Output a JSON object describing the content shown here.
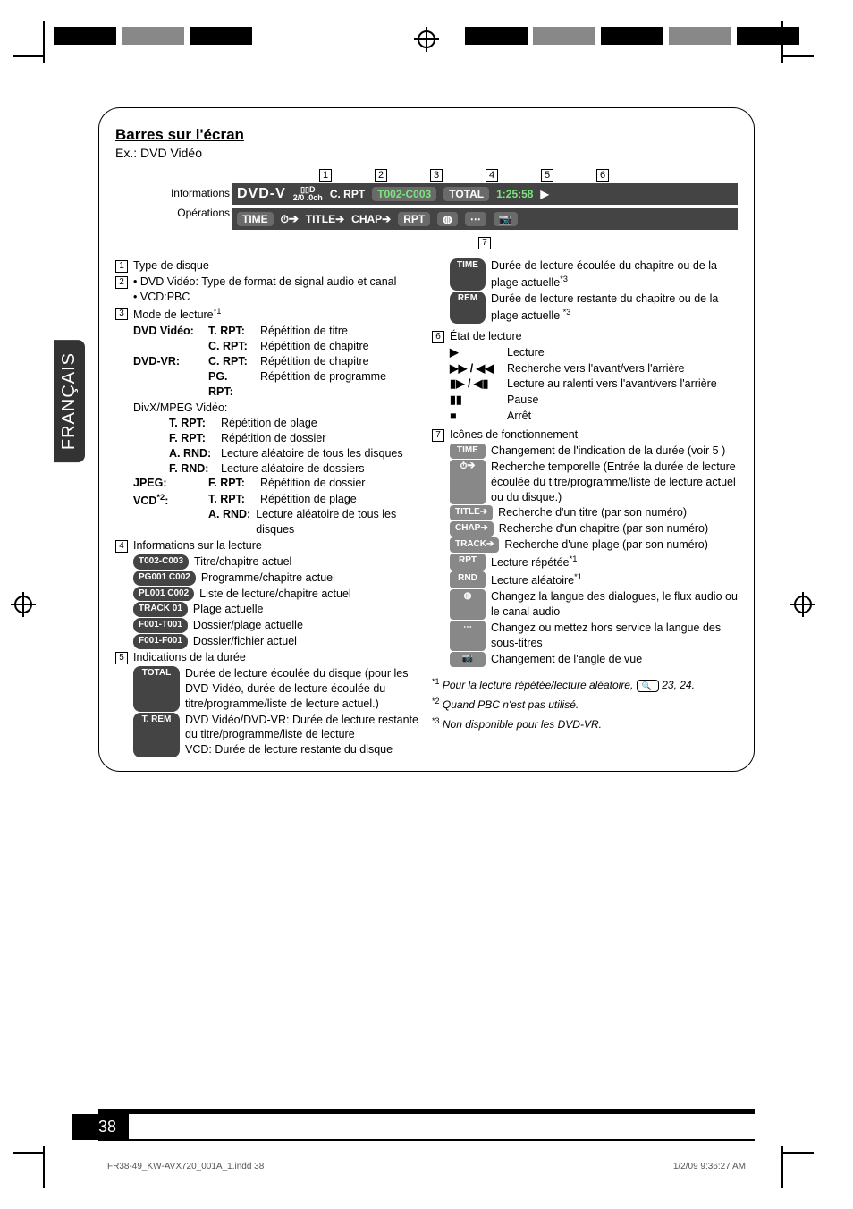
{
  "colors": {
    "bar_bg": "#444444",
    "pill_bg": "#6a6a6a",
    "green": "#7de37d"
  },
  "lang_tab": "FRANÇAIS",
  "heading": "Barres sur l'écran",
  "subheading": "Ex.: DVD Vidéo",
  "osd": {
    "left_label_top": "Informations",
    "left_label_bot": "Opérations",
    "callouts": [
      "1",
      "2",
      "3",
      "4",
      "5",
      "6",
      "7"
    ],
    "bar1": {
      "type": "DVD-V",
      "audio_line1": "▯▯D",
      "audio_line2": "2/0 .0ch",
      "rpt": "C. RPT",
      "tc": "T002-C003",
      "total_lbl": "TOTAL",
      "time": "1:25:58",
      "play": "▶"
    },
    "bar2": {
      "time": "TIME",
      "clock": "⏱➔",
      "title": "TITLE➔",
      "chap": "CHAP➔",
      "rpt": "RPT",
      "disc": "◍",
      "sub": "⋯",
      "angle": "📷"
    }
  },
  "left": {
    "n1": "Type de disque",
    "n2_a": "DVD Vidéo: Type de format de signal audio et canal",
    "n2_b": "VCD:PBC",
    "n3_head": "Mode de lecture",
    "n3_sup": "*1",
    "dvdvideo": "DVD Vidéo:",
    "dvdvr": "DVD-VR:",
    "divx": "DivX/MPEG Vidéo:",
    "jpeg": "JPEG:",
    "vcd": "VCD",
    "vcd_sup": "*2",
    "modes": {
      "trpt": {
        "k": "T. RPT:",
        "v": "Répétition de titre"
      },
      "crpt": {
        "k": "C. RPT:",
        "v": "Répétition de chapitre"
      },
      "crpt2": {
        "k": "C. RPT:",
        "v": "Répétition de chapitre"
      },
      "pgrpt": {
        "k": "PG. RPT:",
        "v": "Répétition de programme"
      },
      "trpt2": {
        "k": "T. RPT:",
        "v": "Répétition de plage"
      },
      "frpt": {
        "k": "F. RPT:",
        "v": "Répétition de dossier"
      },
      "arnd": {
        "k": "A. RND:",
        "v": "Lecture aléatoire de tous les disques"
      },
      "frnd": {
        "k": "F. RND:",
        "v": "Lecture aléatoire de dossiers"
      },
      "frpt2": {
        "k": "F. RPT:",
        "v": "Répétition de dossier"
      },
      "trpt3": {
        "k": "T. RPT:",
        "v": "Répétition de plage"
      },
      "arnd2": {
        "k": "A. RND:",
        "v": "Lecture aléatoire de tous les disques"
      }
    },
    "n4_head": "Informations sur la lecture",
    "info": [
      {
        "p": "T002-C003",
        "v": "Titre/chapitre actuel"
      },
      {
        "p": "PG001 C002",
        "v": "Programme/chapitre actuel"
      },
      {
        "p": "PL001 C002",
        "v": "Liste de lecture/chapitre actuel"
      },
      {
        "p": "TRACK 01",
        "v": "Plage actuelle"
      },
      {
        "p": "F001-T001",
        "v": "Dossier/plage actuelle"
      },
      {
        "p": "F001-F001",
        "v": "Dossier/fichier actuel"
      }
    ],
    "n5_head": "Indications de la durée",
    "time_total": {
      "p": "TOTAL",
      "v": "Durée de lecture écoulée du disque (pour les DVD-Vidéo, durée de lecture écoulée du titre/programme/liste de lecture actuel.)"
    },
    "time_trem": {
      "p": "T. REM",
      "v": "DVD Vidéo/DVD-VR: Durée de lecture restante du titre/programme/liste de lecture\nVCD: Durée de lecture restante du disque"
    }
  },
  "right": {
    "time": {
      "p": "TIME",
      "v": "Durée de lecture écoulée du chapitre ou de la plage actuelle",
      "sup": "*3"
    },
    "rem": {
      "p": "REM",
      "v": "Durée de lecture restante du chapitre ou de la plage actuelle",
      "sup": "*3"
    },
    "n6_head": "État de lecture",
    "states": [
      {
        "i": "▶",
        "v": "Lecture"
      },
      {
        "i": "▶▶ / ◀◀",
        "v": "Recherche vers l'avant/vers l'arrière"
      },
      {
        "i": "▮▶ / ◀▮",
        "v": "Lecture au ralenti vers l'avant/vers l'arrière"
      },
      {
        "i": "▮▮",
        "v": "Pause"
      },
      {
        "i": "■",
        "v": "Arrêt"
      }
    ],
    "n7_head": "Icônes de fonctionnement",
    "ops": [
      {
        "p": "TIME",
        "v": "Changement de l'indication de la durée (voir 5 )"
      },
      {
        "p": "⏱➔",
        "v": "Recherche temporelle (Entrée la durée de lecture écoulée du titre/programme/liste de lecture actuel ou du disque.)"
      },
      {
        "p": "TITLE➔",
        "v": "Recherche d'un titre (par son numéro)"
      },
      {
        "p": "CHAP➔",
        "v": "Recherche d'un chapitre (par son numéro)"
      },
      {
        "p": "TRACK➔",
        "v": "Recherche d'une plage (par son numéro)"
      },
      {
        "p": "RPT",
        "v": "Lecture répétée",
        "sup": "*1"
      },
      {
        "p": "RND",
        "v": "Lecture aléatoire",
        "sup": "*1"
      },
      {
        "p": "◍",
        "v": "Changez la langue des dialogues, le flux audio ou le canal audio"
      },
      {
        "p": "⋯",
        "v": "Changez ou mettez hors service la langue des sous-titres"
      },
      {
        "p": "📷",
        "v": "Changement de l'angle de vue"
      }
    ],
    "foot1_sup": "*1",
    "foot1": "Pour la lecture répétée/lecture aléatoire,",
    "foot1_pg": "23, 24.",
    "foot2_sup": "*2",
    "foot2": "Quand PBC n'est pas utilisé.",
    "foot3_sup": "*3",
    "foot3": "Non disponible pour les DVD-VR."
  },
  "page_number": "38",
  "footer_left": "FR38-49_KW-AVX720_001A_1.indd   38",
  "footer_right": "1/2/09   9:36:27 AM"
}
